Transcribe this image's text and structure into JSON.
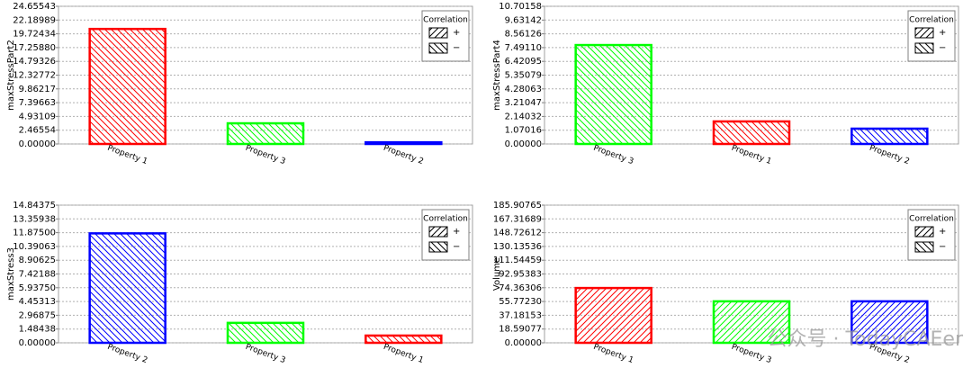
{
  "chart_data": [
    {
      "type": "bar",
      "y_label": "maxStressPart2",
      "categories": [
        "Property 1",
        "Property 3",
        "Property 2"
      ],
      "values": [
        20.6,
        3.7,
        0.3
      ],
      "colors": [
        "#ff0000",
        "#00ff00",
        "#0000ff"
      ],
      "correlation": [
        "−",
        "−",
        "−"
      ],
      "ylim": [
        0,
        24.65543
      ],
      "yticks": [
        {
          "value": 0,
          "label": "0.00000"
        },
        2.46554,
        4.93109,
        7.39663,
        9.86217,
        12.32772,
        14.79326,
        {
          "value": 17.2588,
          "label": "17.25880"
        },
        19.72434,
        22.18989,
        24.65543
      ],
      "grid": true,
      "legend": {
        "title": "Correlation",
        "entries": [
          "+",
          "−"
        ],
        "position": "upper right"
      }
    },
    {
      "type": "bar",
      "y_label": "maxStressPart4",
      "categories": [
        "Property 3",
        "Property 1",
        "Property 2"
      ],
      "values": [
        7.69,
        1.75,
        1.19
      ],
      "colors": [
        "#00ff00",
        "#ff0000",
        "#0000ff"
      ],
      "correlation": [
        "−",
        "−",
        "−"
      ],
      "ylim": [
        0,
        10.70158
      ],
      "yticks": [
        {
          "value": 0,
          "label": "0.00000"
        },
        1.07016,
        2.14032,
        3.21047,
        4.28063,
        5.35079,
        6.42095,
        {
          "value": 7.4911,
          "label": "7.49110"
        },
        8.56126,
        9.63142,
        10.70158
      ],
      "grid": true,
      "legend": {
        "title": "Correlation",
        "entries": [
          "+",
          "−"
        ],
        "position": "upper right"
      }
    },
    {
      "type": "bar",
      "y_label": "maxStress3",
      "categories": [
        "Property 2",
        "Property 3",
        "Property 1"
      ],
      "values": [
        11.8,
        2.15,
        0.78
      ],
      "colors": [
        "#0000ff",
        "#00ff00",
        "#ff0000"
      ],
      "correlation": [
        "−",
        "−",
        "−"
      ],
      "ylim": [
        0,
        14.84375
      ],
      "yticks": [
        {
          "value": 0,
          "label": "0.00000"
        },
        1.48438,
        2.96875,
        4.45313,
        {
          "value": 5.9375,
          "label": "5.93750"
        },
        7.42188,
        8.90625,
        10.39063,
        {
          "value": 11.875,
          "label": "11.87500"
        },
        13.35938,
        14.84375
      ],
      "grid": true,
      "legend": {
        "title": "Correlation",
        "entries": [
          "+",
          "−"
        ],
        "position": "upper right"
      }
    },
    {
      "type": "bar",
      "y_label": "Volume",
      "categories": [
        "Property 1",
        "Property 3",
        "Property 2"
      ],
      "values": [
        74,
        56,
        56
      ],
      "colors": [
        "#ff0000",
        "#00ff00",
        "#0000ff"
      ],
      "correlation": [
        "+",
        "+",
        "+"
      ],
      "ylim": [
        0,
        185.90765
      ],
      "yticks": [
        {
          "value": 0,
          "label": "0.00000"
        },
        18.59077,
        37.18153,
        {
          "value": 55.7723,
          "label": "55.77230"
        },
        74.36306,
        92.95383,
        111.54459,
        130.13536,
        148.72612,
        167.31689,
        185.90765
      ],
      "grid": true,
      "legend": {
        "title": "Correlation",
        "entries": [
          "+",
          "−"
        ],
        "position": "upper right"
      }
    }
  ],
  "watermark": "公众号 · TodayCAEer"
}
